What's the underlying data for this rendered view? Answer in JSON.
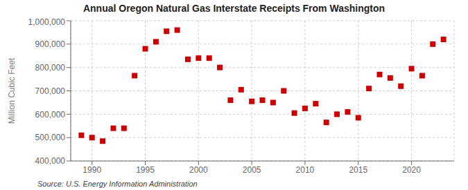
{
  "chart_data": {
    "type": "scatter",
    "title": "Annual Oregon Natural Gas Interstate Receipts From Washington",
    "ylabel": "Million Cubic Feet",
    "annotation": "Source: U.S. Energy Information Administration",
    "x": [
      1989,
      1990,
      1991,
      1992,
      1993,
      1994,
      1995,
      1996,
      1997,
      1998,
      1999,
      2000,
      2001,
      2002,
      2003,
      2004,
      2005,
      2006,
      2007,
      2008,
      2009,
      2010,
      2011,
      2012,
      2013,
      2014,
      2015,
      2016,
      2017,
      2018,
      2019,
      2020,
      2021,
      2022,
      2023
    ],
    "values": [
      510000,
      500000,
      485000,
      540000,
      540000,
      765000,
      880000,
      910000,
      955000,
      960000,
      835000,
      840000,
      840000,
      800000,
      660000,
      705000,
      655000,
      660000,
      650000,
      700000,
      605000,
      625000,
      645000,
      565000,
      600000,
      610000,
      585000,
      710000,
      770000,
      755000,
      720000,
      795000,
      765000,
      900000,
      920000
    ],
    "color": "#cc0000",
    "marker": "square",
    "grid": true,
    "xlim": [
      1988,
      2024
    ],
    "xticks": [
      1990,
      1995,
      2000,
      2005,
      2010,
      2015,
      2020
    ],
    "ylim": [
      400000,
      1000000
    ],
    "yticks": [
      {
        "value": 400000,
        "label": "400,000"
      },
      {
        "value": 500000,
        "label": "500,000"
      },
      {
        "value": 600000,
        "label": "600,000"
      },
      {
        "value": 700000,
        "label": "700,000"
      },
      {
        "value": 800000,
        "label": "800,000"
      },
      {
        "value": 900000,
        "label": "900,000"
      },
      {
        "value": 1000000,
        "label": "1,000,000"
      }
    ]
  }
}
